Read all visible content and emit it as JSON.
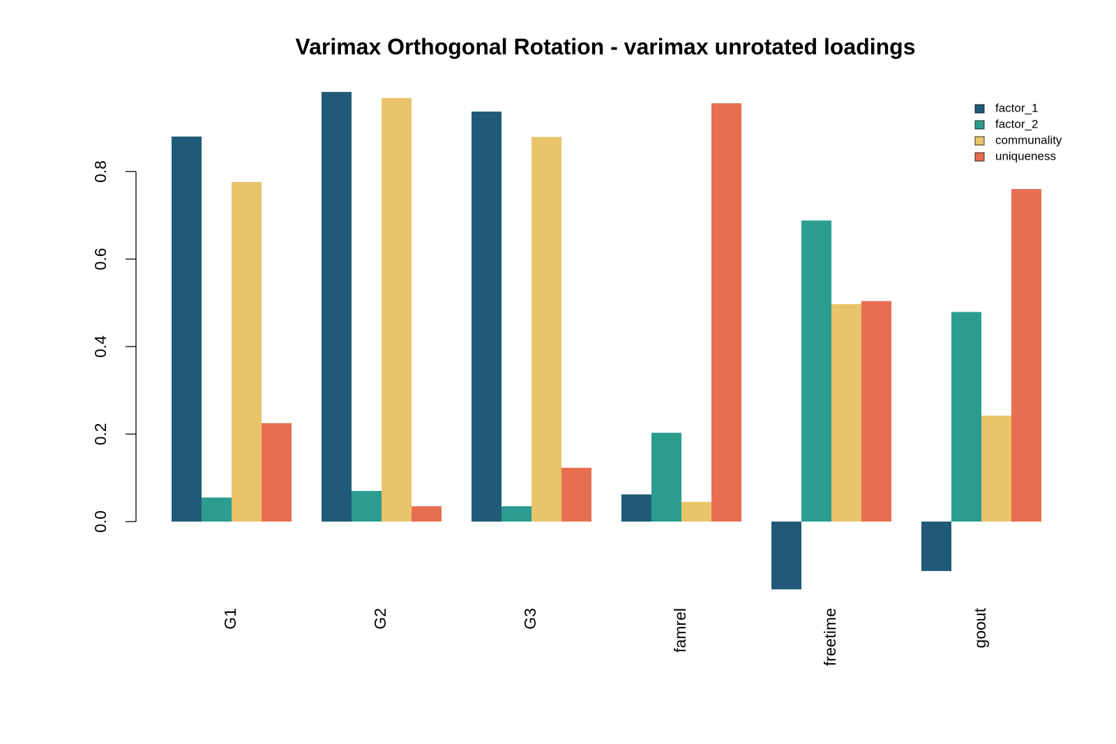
{
  "chart_data": {
    "type": "bar",
    "title": "Varimax Orthogonal Rotation - varimax unrotated loadings",
    "xlabel": "",
    "ylabel": "",
    "categories": [
      "G1",
      "G2",
      "G3",
      "famrel",
      "freetime",
      "goout"
    ],
    "series": [
      {
        "name": "factor_1",
        "color": "#205a78",
        "values": [
          0.88,
          0.982,
          0.937,
          0.062,
          -0.155,
          -0.113
        ]
      },
      {
        "name": "factor_2",
        "color": "#2a9d8f",
        "values": [
          0.055,
          0.07,
          0.035,
          0.203,
          0.688,
          0.479
        ]
      },
      {
        "name": "communality",
        "color": "#e9c46a",
        "values": [
          0.776,
          0.968,
          0.879,
          0.045,
          0.497,
          0.242
        ]
      },
      {
        "name": "uniqueness",
        "color": "#e76f51",
        "values": [
          0.225,
          0.035,
          0.123,
          0.956,
          0.504,
          0.76
        ]
      }
    ],
    "yticks": [
      "0.0",
      "0.2",
      "0.4",
      "0.6",
      "0.8"
    ],
    "ylim": [
      -0.16,
      0.98
    ],
    "grid": false,
    "legend_position": "top-right"
  }
}
